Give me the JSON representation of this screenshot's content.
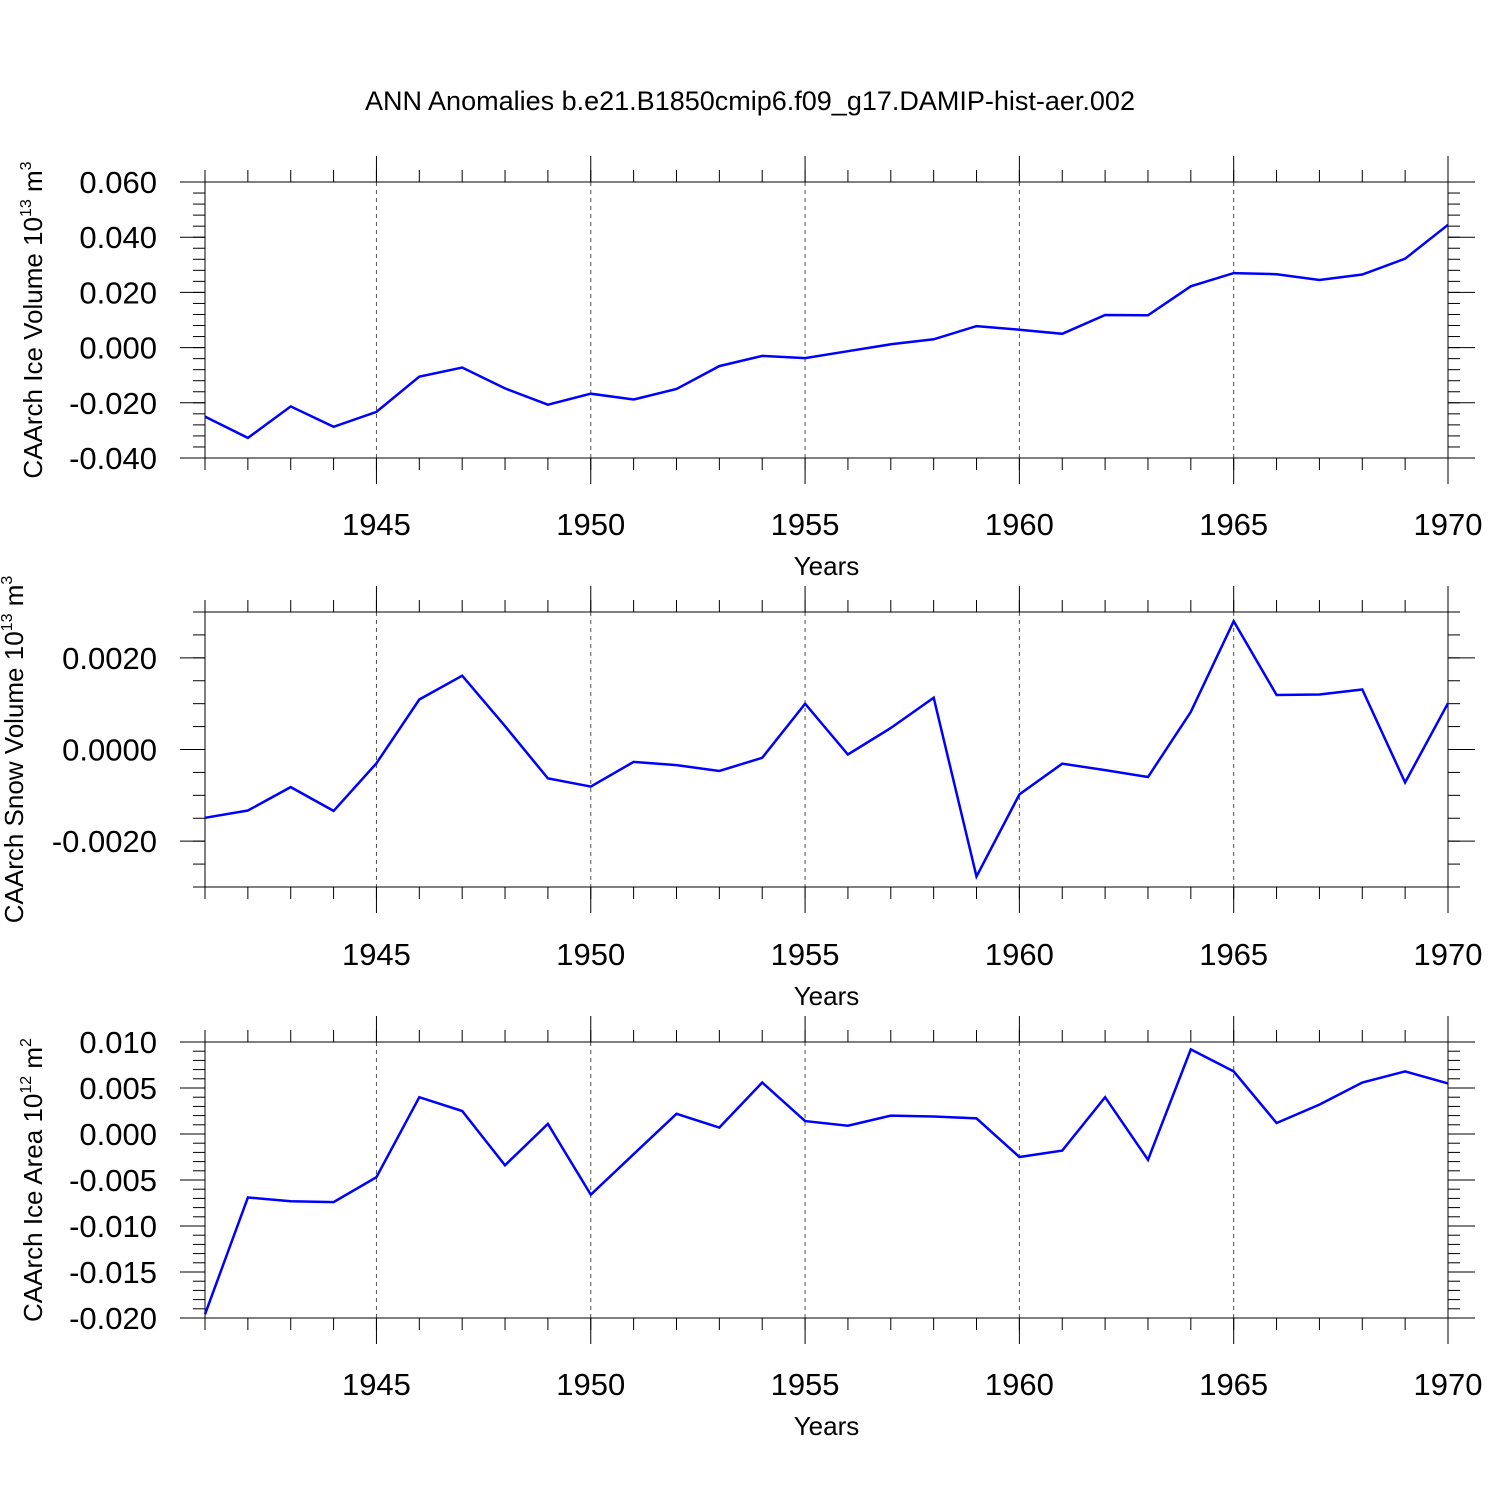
{
  "title": "ANN Anomalies b.e21.B1850cmip6.f09_g17.DAMIP-hist-aer.002",
  "line_color": "#0000ff",
  "chart_data": [
    {
      "type": "line",
      "ylabel": "CAArch Ice Volume 10",
      "ylabel_sup": "13",
      "ylabel_unit": " m",
      "ylabel_unit_sup": "3",
      "xlabel": "Years",
      "xlim": [
        1941,
        1970
      ],
      "ylim": [
        -0.04,
        0.06
      ],
      "y_ticks": [
        -0.04,
        -0.02,
        0.0,
        0.02,
        0.04,
        0.06
      ],
      "y_tick_labels": [
        "-0.040",
        "-0.020",
        "0.000",
        "0.020",
        "0.040",
        "0.060"
      ],
      "y_minor_step": 0.004,
      "x_ticks": [
        1945,
        1950,
        1955,
        1960,
        1965,
        1970
      ],
      "x_tick_labels": [
        "1945",
        "1950",
        "1955",
        "1960",
        "1965",
        "1970"
      ],
      "x": [
        1941,
        1942,
        1943,
        1944,
        1945,
        1946,
        1947,
        1948,
        1949,
        1950,
        1951,
        1952,
        1953,
        1954,
        1955,
        1956,
        1957,
        1958,
        1959,
        1960,
        1961,
        1962,
        1963,
        1964,
        1965,
        1966,
        1967,
        1968,
        1969,
        1970
      ],
      "values": [
        -0.025,
        -0.0327,
        -0.0213,
        -0.0287,
        -0.0233,
        -0.0105,
        -0.0072,
        -0.0148,
        -0.0207,
        -0.0167,
        -0.0188,
        -0.015,
        -0.0067,
        -0.003,
        -0.0038,
        -0.0013,
        0.0012,
        0.003,
        0.0078,
        0.0065,
        0.005,
        0.0118,
        0.0117,
        0.0222,
        0.027,
        0.0266,
        0.0245,
        0.0265,
        0.0322,
        0.0445
      ]
    },
    {
      "type": "line",
      "ylabel": "CAArch Snow Volume 10",
      "ylabel_sup": "13",
      "ylabel_unit": " m",
      "ylabel_unit_sup": "3",
      "xlabel": "Years",
      "xlim": [
        1941,
        1970
      ],
      "ylim": [
        -0.003,
        0.003
      ],
      "y_ticks": [
        -0.002,
        0.0,
        0.002
      ],
      "y_tick_labels": [
        "-0.0020",
        "0.0000",
        "0.0020"
      ],
      "y_minor_step": 0.0005,
      "x_ticks": [
        1945,
        1950,
        1955,
        1960,
        1965,
        1970
      ],
      "x_tick_labels": [
        "1945",
        "1950",
        "1955",
        "1960",
        "1965",
        "1970"
      ],
      "x": [
        1941,
        1942,
        1943,
        1944,
        1945,
        1946,
        1947,
        1948,
        1949,
        1950,
        1951,
        1952,
        1953,
        1954,
        1955,
        1956,
        1957,
        1958,
        1959,
        1960,
        1961,
        1962,
        1963,
        1964,
        1965,
        1966,
        1967,
        1968,
        1969,
        1970
      ],
      "values": [
        -0.00149,
        -0.00133,
        -0.00082,
        -0.00134,
        -0.0003,
        0.00109,
        0.00161,
        0.00051,
        -0.00063,
        -0.00081,
        -0.00027,
        -0.00034,
        -0.00047,
        -0.00018,
        0.001,
        -0.00011,
        0.00047,
        0.00113,
        -0.00277,
        -0.00098,
        -0.00031,
        -0.00045,
        -0.0006,
        0.00082,
        0.0028,
        0.00119,
        0.0012,
        0.00131,
        -0.00072,
        0.00101
      ]
    },
    {
      "type": "line",
      "ylabel": "CAArch Ice Area 10",
      "ylabel_sup": "12",
      "ylabel_unit": " m",
      "ylabel_unit_sup": "2",
      "xlabel": "Years",
      "xlim": [
        1941,
        1970
      ],
      "ylim": [
        -0.02,
        0.01
      ],
      "y_ticks": [
        -0.02,
        -0.015,
        -0.01,
        -0.005,
        0.0,
        0.005,
        0.01
      ],
      "y_tick_labels": [
        "-0.020",
        "-0.015",
        "-0.010",
        "-0.005",
        "0.000",
        "0.005",
        "0.010"
      ],
      "y_minor_step": 0.001,
      "x_ticks": [
        1945,
        1950,
        1955,
        1960,
        1965,
        1970
      ],
      "x_tick_labels": [
        "1945",
        "1950",
        "1955",
        "1960",
        "1965",
        "1970"
      ],
      "x": [
        1941,
        1942,
        1943,
        1944,
        1945,
        1946,
        1947,
        1948,
        1949,
        1950,
        1951,
        1952,
        1953,
        1954,
        1955,
        1956,
        1957,
        1958,
        1959,
        1960,
        1961,
        1962,
        1963,
        1964,
        1965,
        1966,
        1967,
        1968,
        1969,
        1970
      ],
      "values": [
        -0.0196,
        -0.0069,
        -0.0073,
        -0.0074,
        -0.0047,
        0.004,
        0.0025,
        -0.0034,
        0.0011,
        -0.0066,
        -0.0022,
        0.0022,
        0.0007,
        0.0056,
        0.0014,
        0.0009,
        0.002,
        0.0019,
        0.0017,
        -0.0025,
        -0.0018,
        0.004,
        -0.0028,
        0.0092,
        0.0068,
        0.0012,
        0.0032,
        0.0056,
        0.0068,
        0.0055
      ]
    }
  ]
}
